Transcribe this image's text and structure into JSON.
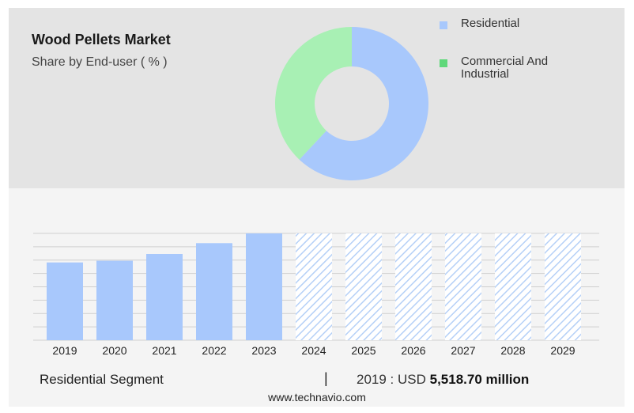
{
  "header": {
    "title": "Wood Pellets Market",
    "subtitle": "Share by End-user ( % )"
  },
  "colors": {
    "residential": "#a8c8fc",
    "commercial": "#a8f0b4",
    "commercial_legend": "#5fd87a",
    "hatch": "#b5d0f7",
    "grid": "#cfcfcf"
  },
  "chart_data": [
    {
      "type": "pie",
      "donut": true,
      "title": "Share by End-user ( % )",
      "legend_position": "right",
      "series": [
        {
          "name": "Residential",
          "value": 62
        },
        {
          "name": "Commercial And Industrial",
          "value": 38
        }
      ]
    },
    {
      "type": "bar",
      "categories": [
        "2019",
        "2020",
        "2021",
        "2022",
        "2023",
        "2024",
        "2025",
        "2026",
        "2027",
        "2028",
        "2029"
      ],
      "values": [
        5518.7,
        5640,
        6120,
        6890,
        7580,
        null,
        null,
        null,
        null,
        null,
        null
      ],
      "forecast_categories": [
        "2024",
        "2025",
        "2026",
        "2027",
        "2028",
        "2029"
      ],
      "ylim": [
        0,
        7580
      ],
      "grid": true,
      "xlabel": "",
      "ylabel": ""
    }
  ],
  "footer": {
    "segment_label": "Residential Segment",
    "separator": "|",
    "year_prefix": "2019 : USD",
    "value_text": "5,518.70 million",
    "source": "www.technavio.com"
  }
}
